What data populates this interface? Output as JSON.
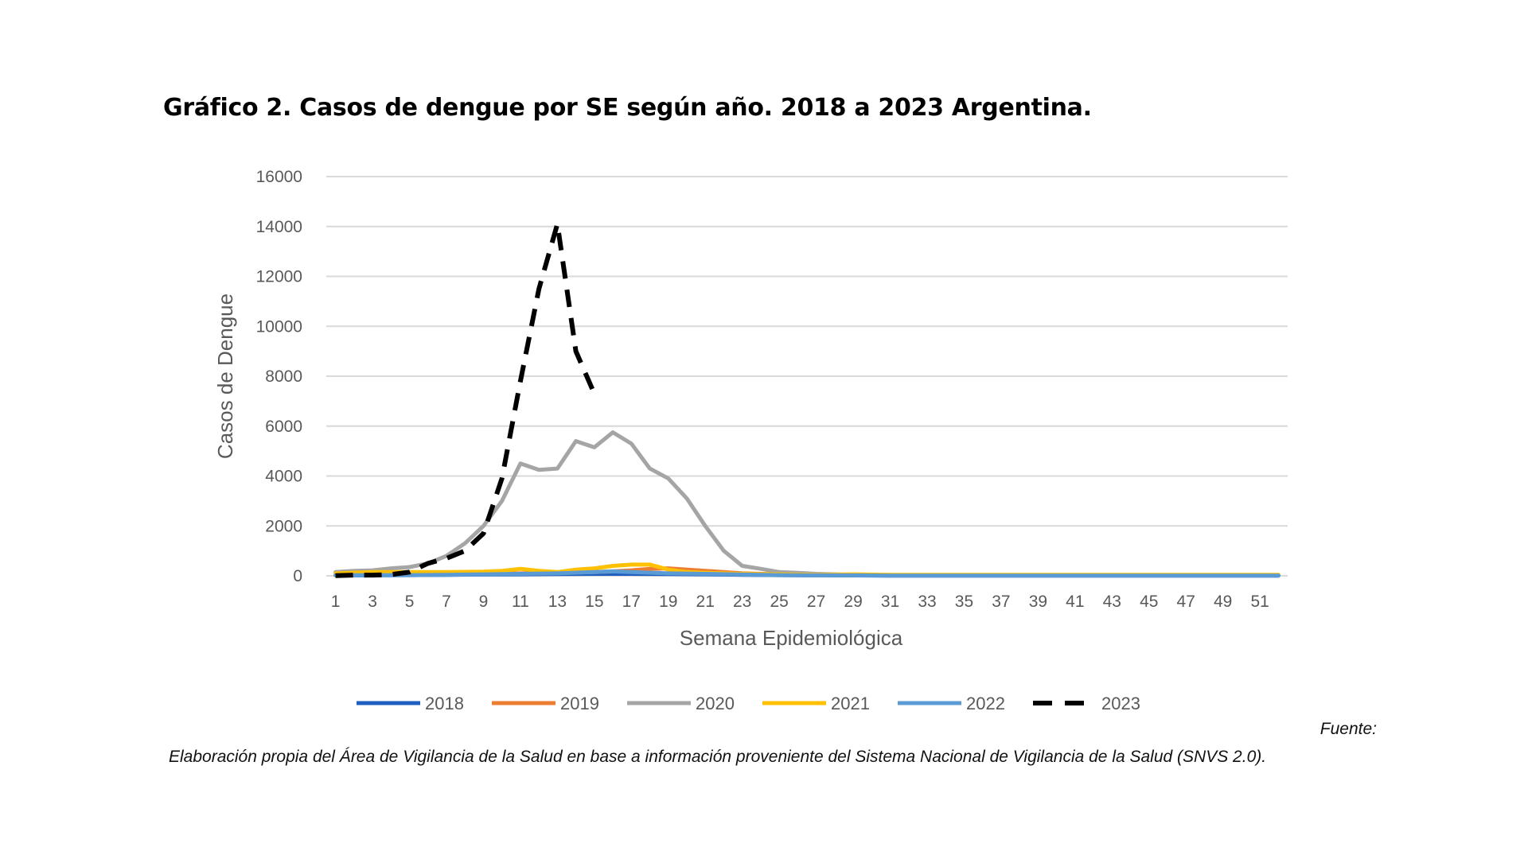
{
  "title": "Gráfico 2. Casos de dengue por SE según año. 2018 a 2023 Argentina.",
  "footer": {
    "fuente_label": "Fuente:",
    "source_text": "Elaboración propia del Área de Vigilancia de la Salud en base a información proveniente del Sistema Nacional de Vigilancia de la Salud (SNVS 2.0)."
  },
  "chart_data": {
    "type": "line",
    "title": "Gráfico 2. Casos de dengue por SE según año. 2018 a 2023 Argentina.",
    "xlabel": "Semana Epidemiológica",
    "ylabel": "Casos de Dengue",
    "ylim": [
      0,
      16000
    ],
    "yticks": [
      0,
      2000,
      4000,
      6000,
      8000,
      10000,
      12000,
      14000,
      16000
    ],
    "xticks": [
      1,
      3,
      5,
      7,
      9,
      11,
      13,
      15,
      17,
      19,
      21,
      23,
      25,
      27,
      29,
      31,
      33,
      35,
      37,
      39,
      41,
      43,
      45,
      47,
      49,
      51
    ],
    "xlim": [
      1,
      52
    ],
    "grid": "horizontal",
    "legend_position": "bottom",
    "series": [
      {
        "name": "2018",
        "color": "#1f5fbf",
        "dashed": false,
        "x": [
          1,
          3,
          5,
          7,
          9,
          11,
          13,
          15,
          17,
          19,
          21,
          23,
          25,
          27,
          29,
          31,
          33,
          35,
          37,
          39,
          41,
          43,
          45,
          47,
          49,
          51,
          52
        ],
        "values": [
          20,
          20,
          30,
          40,
          50,
          60,
          70,
          80,
          80,
          70,
          60,
          40,
          30,
          20,
          15,
          10,
          10,
          10,
          10,
          10,
          10,
          10,
          10,
          10,
          10,
          10,
          10
        ]
      },
      {
        "name": "2019",
        "color": "#ed7d31",
        "dashed": false,
        "x": [
          1,
          3,
          5,
          7,
          9,
          11,
          13,
          15,
          16,
          17,
          18,
          19,
          21,
          23,
          25,
          27,
          29,
          31,
          33,
          35,
          37,
          39,
          41,
          43,
          45,
          47,
          49,
          51,
          52
        ],
        "values": [
          30,
          40,
          50,
          60,
          80,
          100,
          120,
          150,
          180,
          220,
          280,
          300,
          200,
          100,
          60,
          40,
          30,
          20,
          20,
          15,
          15,
          15,
          15,
          15,
          15,
          15,
          15,
          15,
          15
        ]
      },
      {
        "name": "2020",
        "color": "#a5a5a5",
        "dashed": false,
        "x": [
          1,
          2,
          3,
          4,
          5,
          6,
          7,
          8,
          9,
          10,
          11,
          12,
          13,
          14,
          15,
          16,
          17,
          18,
          19,
          20,
          21,
          22,
          23,
          24,
          25,
          26,
          27,
          28,
          29,
          30,
          32,
          35,
          40,
          45,
          50,
          52
        ],
        "values": [
          150,
          200,
          220,
          300,
          350,
          500,
          800,
          1300,
          2000,
          3000,
          4500,
          4250,
          4300,
          5400,
          5150,
          5750,
          5300,
          4300,
          3900,
          3100,
          2000,
          1000,
          400,
          280,
          150,
          120,
          80,
          60,
          40,
          30,
          20,
          20,
          15,
          15,
          15,
          15
        ]
      },
      {
        "name": "2021",
        "color": "#ffc000",
        "dashed": false,
        "x": [
          1,
          3,
          5,
          7,
          9,
          10,
          11,
          12,
          13,
          14,
          15,
          16,
          17,
          18,
          19,
          20,
          21,
          23,
          25,
          27,
          29,
          31,
          33,
          35,
          37,
          39,
          41,
          43,
          45,
          47,
          49,
          51,
          52
        ],
        "values": [
          100,
          150,
          150,
          150,
          170,
          200,
          280,
          200,
          150,
          250,
          300,
          400,
          450,
          450,
          250,
          150,
          120,
          80,
          60,
          40,
          60,
          40,
          40,
          40,
          40,
          40,
          40,
          40,
          40,
          40,
          40,
          40,
          40
        ]
      },
      {
        "name": "2022",
        "color": "#5b9bd5",
        "dashed": false,
        "x": [
          1,
          3,
          5,
          7,
          9,
          11,
          13,
          15,
          16,
          17,
          19,
          21,
          23,
          25,
          27,
          29,
          31,
          33,
          35,
          37,
          39,
          41,
          43,
          45,
          47,
          49,
          51,
          52
        ],
        "values": [
          20,
          30,
          30,
          40,
          60,
          80,
          100,
          150,
          180,
          150,
          100,
          80,
          50,
          30,
          20,
          20,
          10,
          10,
          10,
          10,
          10,
          10,
          10,
          10,
          10,
          10,
          10,
          10
        ]
      },
      {
        "name": "2023",
        "color": "#000000",
        "dashed": true,
        "x": [
          1,
          2,
          3,
          4,
          5,
          6,
          7,
          8,
          9,
          10,
          11,
          12,
          13,
          14,
          15
        ],
        "values": [
          10,
          30,
          30,
          50,
          150,
          500,
          700,
          1000,
          1700,
          3900,
          7800,
          11500,
          14100,
          9000,
          7300
        ]
      }
    ]
  }
}
